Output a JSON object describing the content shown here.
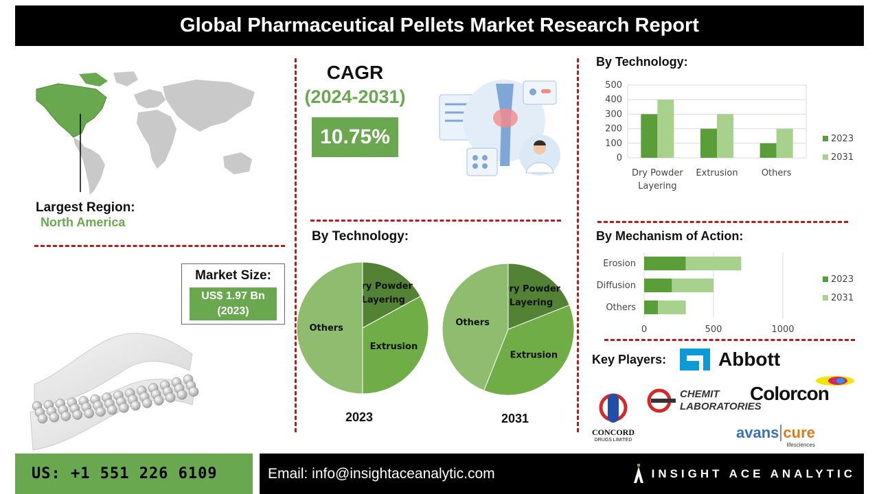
{
  "header": {
    "title": "Global Pharmaceutical Pellets Market Research Report"
  },
  "region": {
    "label": "Largest Region:",
    "value": "North America"
  },
  "cagr": {
    "title": "CAGR",
    "years": "(2024-2031)",
    "value": "10.75%"
  },
  "market_size": {
    "label": "Market Size:",
    "value_line1": "US$ 1.97 Bn",
    "value_line2": "(2023)"
  },
  "tech_bar_title": "By Technology:",
  "tech_pie_title": "By Technology:",
  "mech_title": "By Mechanism of Action:",
  "key_players": {
    "label": "Key Players:",
    "abbott": "Abbott",
    "chemit": [
      "CHEMIT",
      "LABORATORIES"
    ],
    "colorcon": "Colorcon",
    "concord": [
      "CONCORD",
      "DRUGS LIMITED"
    ],
    "avanscure": [
      "avans",
      "cure",
      "lifesciences"
    ]
  },
  "footer": {
    "phone": "US: +1 551 226 6109",
    "email": "Email: info@insightaceanalytic.com",
    "brand": "INSIGHT ACE ANALYTIC"
  },
  "colors": {
    "accent_green": "#6aa84f",
    "light_green": "#a9d18e",
    "dark_green": "#5a9e3a",
    "divider_red": "#b71c1c",
    "pie_dark": "#548235",
    "pie_mid": "#70ad47",
    "pie_light": "#8fbc6f"
  },
  "chart_data": [
    {
      "type": "bar",
      "title": "By Technology:",
      "categories": [
        "Dry Powder Layering",
        "Extrusion",
        "Others"
      ],
      "series": [
        {
          "name": "2023",
          "values": [
            300,
            200,
            100
          ]
        },
        {
          "name": "2031",
          "values": [
            400,
            300,
            200
          ]
        }
      ],
      "ylim": [
        0,
        500
      ],
      "yticks": [
        0,
        100,
        200,
        300,
        400,
        500
      ],
      "legend": "right",
      "grid": true
    },
    {
      "type": "bar",
      "orientation": "horizontal",
      "stacked": true,
      "title": "By Mechanism of Action:",
      "categories": [
        "Erosion",
        "Diffusion",
        "Others"
      ],
      "series": [
        {
          "name": "2023",
          "values": [
            300,
            200,
            100
          ]
        },
        {
          "name": "2031",
          "values": [
            400,
            300,
            200
          ]
        }
      ],
      "xlim": [
        0,
        1000
      ],
      "xticks": [
        0,
        500,
        1000
      ],
      "legend": "right",
      "grid": true
    },
    {
      "type": "pie",
      "title": "2023",
      "labels": [
        "Dry Powder Layering",
        "Extrusion",
        "Others"
      ],
      "values": [
        17,
        33,
        50
      ]
    },
    {
      "type": "pie",
      "title": "2031",
      "labels": [
        "Dry Powder Layering",
        "Extrusion",
        "Others"
      ],
      "values": [
        19,
        37,
        44
      ]
    }
  ]
}
